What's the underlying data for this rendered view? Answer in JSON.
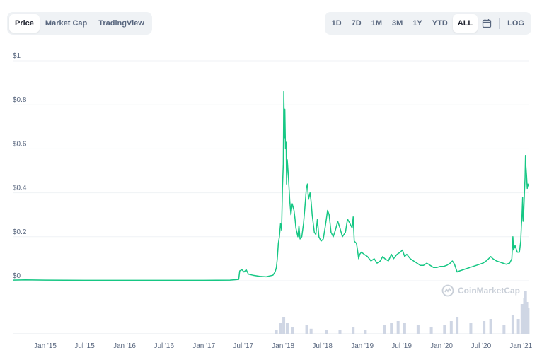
{
  "toolbar": {
    "tabs": [
      {
        "label": "Price",
        "active": true
      },
      {
        "label": "Market Cap",
        "active": false
      },
      {
        "label": "TradingView",
        "active": false
      }
    ]
  },
  "ranges": {
    "items": [
      {
        "label": "1D",
        "active": false
      },
      {
        "label": "7D",
        "active": false
      },
      {
        "label": "1M",
        "active": false
      },
      {
        "label": "3M",
        "active": false
      },
      {
        "label": "1Y",
        "active": false
      },
      {
        "label": "YTD",
        "active": false
      },
      {
        "label": "ALL",
        "active": true
      }
    ],
    "calendar_icon": "calendar-icon",
    "log_label": "LOG"
  },
  "watermark": {
    "text": "CoinMarketCap",
    "icon": "coinmarketcap-logo-icon"
  },
  "colors": {
    "line": "#16c784",
    "volume": "#cfd6e4",
    "grid": "#eff2f5"
  },
  "chart_data": {
    "type": "line",
    "ylim": [
      0,
      1
    ],
    "yticks": [
      {
        "value": 0,
        "label": "$0"
      },
      {
        "value": 0.2,
        "label": "$0.2"
      },
      {
        "value": 0.4,
        "label": "$0.4"
      },
      {
        "value": 0.6,
        "label": "$0.6"
      },
      {
        "value": 0.8,
        "label": "$0.8"
      },
      {
        "value": 1,
        "label": "$1"
      }
    ],
    "xlim": [
      "2014-08-04",
      "2021-02-05"
    ],
    "xticks": [
      {
        "date": "2015-01-01",
        "label": "Jan '15"
      },
      {
        "date": "2015-07-01",
        "label": "Jul '15"
      },
      {
        "date": "2016-01-01",
        "label": "Jan '16"
      },
      {
        "date": "2016-07-01",
        "label": "Jul '16"
      },
      {
        "date": "2017-01-01",
        "label": "Jan '17"
      },
      {
        "date": "2017-07-01",
        "label": "Jul '17"
      },
      {
        "date": "2018-01-01",
        "label": "Jan '18"
      },
      {
        "date": "2018-07-01",
        "label": "Jul '18"
      },
      {
        "date": "2019-01-01",
        "label": "Jan '19"
      },
      {
        "date": "2019-07-01",
        "label": "Jul '19"
      },
      {
        "date": "2020-01-01",
        "label": "Jan '20"
      },
      {
        "date": "2020-07-01",
        "label": "Jul '20"
      },
      {
        "date": "2021-01-01",
        "label": "Jan '21"
      }
    ],
    "series": [
      {
        "points": [
          [
            "2014-08-04",
            0.003
          ],
          [
            "2014-10-01",
            0.004
          ],
          [
            "2015-01-01",
            0.003
          ],
          [
            "2015-07-01",
            0.002
          ],
          [
            "2016-01-01",
            0.002
          ],
          [
            "2016-07-01",
            0.002
          ],
          [
            "2017-01-01",
            0.002
          ],
          [
            "2017-05-01",
            0.003
          ],
          [
            "2017-06-10",
            0.006
          ],
          [
            "2017-06-15",
            0.045
          ],
          [
            "2017-06-25",
            0.05
          ],
          [
            "2017-07-05",
            0.04
          ],
          [
            "2017-07-15",
            0.05
          ],
          [
            "2017-07-25",
            0.03
          ],
          [
            "2017-08-15",
            0.025
          ],
          [
            "2017-09-15",
            0.02
          ],
          [
            "2017-10-15",
            0.018
          ],
          [
            "2017-11-15",
            0.025
          ],
          [
            "2017-11-25",
            0.04
          ],
          [
            "2017-12-01",
            0.06
          ],
          [
            "2017-12-05",
            0.1
          ],
          [
            "2017-12-10",
            0.17
          ],
          [
            "2017-12-15",
            0.2
          ],
          [
            "2017-12-20",
            0.26
          ],
          [
            "2017-12-25",
            0.23
          ],
          [
            "2017-12-29",
            0.42
          ],
          [
            "2018-01-02",
            0.53
          ],
          [
            "2018-01-04",
            0.86
          ],
          [
            "2018-01-07",
            0.65
          ],
          [
            "2018-01-09",
            0.78
          ],
          [
            "2018-01-12",
            0.6
          ],
          [
            "2018-01-15",
            0.63
          ],
          [
            "2018-01-17",
            0.44
          ],
          [
            "2018-01-20",
            0.55
          ],
          [
            "2018-01-25",
            0.48
          ],
          [
            "2018-02-01",
            0.36
          ],
          [
            "2018-02-06",
            0.3
          ],
          [
            "2018-02-12",
            0.35
          ],
          [
            "2018-02-20",
            0.32
          ],
          [
            "2018-02-25",
            0.28
          ],
          [
            "2018-03-01",
            0.24
          ],
          [
            "2018-03-10",
            0.2
          ],
          [
            "2018-03-15",
            0.25
          ],
          [
            "2018-03-20",
            0.19
          ],
          [
            "2018-03-28",
            0.2
          ],
          [
            "2018-04-05",
            0.26
          ],
          [
            "2018-04-12",
            0.34
          ],
          [
            "2018-04-18",
            0.42
          ],
          [
            "2018-04-23",
            0.44
          ],
          [
            "2018-04-28",
            0.37
          ],
          [
            "2018-05-05",
            0.4
          ],
          [
            "2018-05-10",
            0.36
          ],
          [
            "2018-05-15",
            0.3
          ],
          [
            "2018-05-25",
            0.22
          ],
          [
            "2018-06-01",
            0.21
          ],
          [
            "2018-06-08",
            0.28
          ],
          [
            "2018-06-15",
            0.2
          ],
          [
            "2018-06-25",
            0.18
          ],
          [
            "2018-07-05",
            0.19
          ],
          [
            "2018-07-15",
            0.25
          ],
          [
            "2018-07-25",
            0.32
          ],
          [
            "2018-08-01",
            0.3
          ],
          [
            "2018-08-10",
            0.22
          ],
          [
            "2018-08-20",
            0.2
          ],
          [
            "2018-08-30",
            0.23
          ],
          [
            "2018-09-10",
            0.27
          ],
          [
            "2018-09-20",
            0.24
          ],
          [
            "2018-10-01",
            0.2
          ],
          [
            "2018-10-15",
            0.22
          ],
          [
            "2018-10-25",
            0.28
          ],
          [
            "2018-11-05",
            0.26
          ],
          [
            "2018-11-15",
            0.24
          ],
          [
            "2018-11-20",
            0.29
          ],
          [
            "2018-11-25",
            0.18
          ],
          [
            "2018-12-05",
            0.17
          ],
          [
            "2018-12-10",
            0.14
          ],
          [
            "2018-12-15",
            0.1
          ],
          [
            "2018-12-20",
            0.12
          ],
          [
            "2018-12-28",
            0.13
          ],
          [
            "2019-01-10",
            0.12
          ],
          [
            "2019-01-25",
            0.11
          ],
          [
            "2019-02-10",
            0.09
          ],
          [
            "2019-02-25",
            0.1
          ],
          [
            "2019-03-10",
            0.08
          ],
          [
            "2019-03-25",
            0.09
          ],
          [
            "2019-04-05",
            0.11
          ],
          [
            "2019-04-15",
            0.1
          ],
          [
            "2019-05-01",
            0.09
          ],
          [
            "2019-05-15",
            0.12
          ],
          [
            "2019-05-25",
            0.1
          ],
          [
            "2019-06-10",
            0.12
          ],
          [
            "2019-06-25",
            0.13
          ],
          [
            "2019-07-05",
            0.14
          ],
          [
            "2019-07-15",
            0.11
          ],
          [
            "2019-07-25",
            0.12
          ],
          [
            "2019-08-10",
            0.1
          ],
          [
            "2019-08-25",
            0.09
          ],
          [
            "2019-09-10",
            0.08
          ],
          [
            "2019-09-25",
            0.07
          ],
          [
            "2019-10-10",
            0.07
          ],
          [
            "2019-10-25",
            0.08
          ],
          [
            "2019-11-10",
            0.07
          ],
          [
            "2019-11-25",
            0.06
          ],
          [
            "2019-12-10",
            0.06
          ],
          [
            "2019-12-25",
            0.065
          ],
          [
            "2020-01-10",
            0.065
          ],
          [
            "2020-01-25",
            0.07
          ],
          [
            "2020-02-10",
            0.08
          ],
          [
            "2020-02-20",
            0.09
          ],
          [
            "2020-03-01",
            0.075
          ],
          [
            "2020-03-13",
            0.04
          ],
          [
            "2020-03-25",
            0.045
          ],
          [
            "2020-04-10",
            0.05
          ],
          [
            "2020-04-25",
            0.055
          ],
          [
            "2020-05-10",
            0.06
          ],
          [
            "2020-05-25",
            0.065
          ],
          [
            "2020-06-10",
            0.07
          ],
          [
            "2020-06-25",
            0.075
          ],
          [
            "2020-07-10",
            0.08
          ],
          [
            "2020-07-25",
            0.09
          ],
          [
            "2020-08-05",
            0.1
          ],
          [
            "2020-08-15",
            0.11
          ],
          [
            "2020-08-25",
            0.1
          ],
          [
            "2020-09-10",
            0.09
          ],
          [
            "2020-09-25",
            0.085
          ],
          [
            "2020-10-10",
            0.08
          ],
          [
            "2020-10-25",
            0.075
          ],
          [
            "2020-11-10",
            0.08
          ],
          [
            "2020-11-20",
            0.1
          ],
          [
            "2020-11-25",
            0.2
          ],
          [
            "2020-11-28",
            0.14
          ],
          [
            "2020-12-05",
            0.16
          ],
          [
            "2020-12-15",
            0.13
          ],
          [
            "2020-12-25",
            0.13
          ],
          [
            "2020-12-31",
            0.18
          ],
          [
            "2021-01-03",
            0.25
          ],
          [
            "2021-01-06",
            0.3
          ],
          [
            "2021-01-09",
            0.38
          ],
          [
            "2021-01-11",
            0.27
          ],
          [
            "2021-01-14",
            0.32
          ],
          [
            "2021-01-17",
            0.4
          ],
          [
            "2021-01-20",
            0.47
          ],
          [
            "2021-01-22",
            0.57
          ],
          [
            "2021-01-24",
            0.52
          ],
          [
            "2021-01-27",
            0.48
          ],
          [
            "2021-01-30",
            0.42
          ],
          [
            "2021-02-02",
            0.44
          ],
          [
            "2021-02-05",
            0.43
          ]
        ]
      }
    ],
    "volume": [
      [
        "2017-12-01",
        0.1
      ],
      [
        "2017-12-20",
        0.25
      ],
      [
        "2018-01-04",
        0.4
      ],
      [
        "2018-01-20",
        0.25
      ],
      [
        "2018-02-15",
        0.15
      ],
      [
        "2018-04-20",
        0.2
      ],
      [
        "2018-05-10",
        0.12
      ],
      [
        "2018-07-20",
        0.1
      ],
      [
        "2018-09-20",
        0.1
      ],
      [
        "2018-11-20",
        0.15
      ],
      [
        "2019-01-15",
        0.1
      ],
      [
        "2019-04-15",
        0.2
      ],
      [
        "2019-05-15",
        0.25
      ],
      [
        "2019-06-15",
        0.3
      ],
      [
        "2019-07-15",
        0.25
      ],
      [
        "2019-09-15",
        0.2
      ],
      [
        "2019-11-15",
        0.15
      ],
      [
        "2020-01-15",
        0.2
      ],
      [
        "2020-02-15",
        0.3
      ],
      [
        "2020-03-13",
        0.4
      ],
      [
        "2020-05-15",
        0.25
      ],
      [
        "2020-07-15",
        0.3
      ],
      [
        "2020-08-15",
        0.35
      ],
      [
        "2020-10-15",
        0.2
      ],
      [
        "2020-11-25",
        0.45
      ],
      [
        "2020-12-20",
        0.35
      ],
      [
        "2021-01-06",
        0.7
      ],
      [
        "2021-01-12",
        0.55
      ],
      [
        "2021-01-18",
        0.85
      ],
      [
        "2021-01-22",
        1.0
      ],
      [
        "2021-01-28",
        0.75
      ],
      [
        "2021-02-03",
        0.6
      ]
    ]
  }
}
